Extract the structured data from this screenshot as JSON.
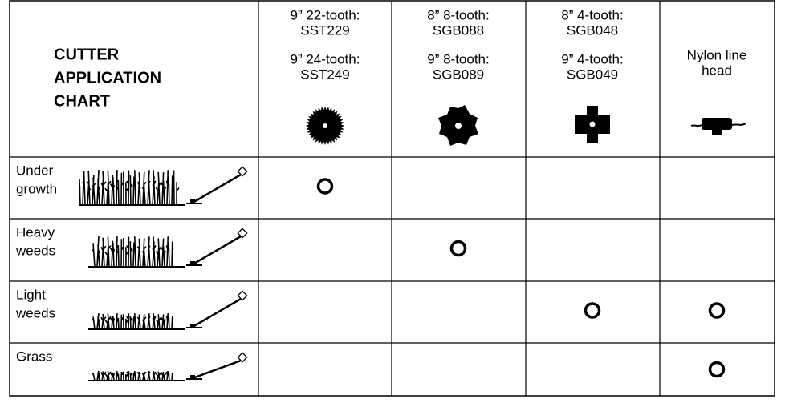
{
  "header": {
    "title": [
      "CUTTER",
      "APPLICATION",
      "CHART"
    ]
  },
  "columns": [
    {
      "groups": [
        [
          "9” 22-tooth:",
          "SST229"
        ],
        [
          "9” 24-tooth:",
          "SST249"
        ]
      ]
    },
    {
      "groups": [
        [
          "8” 8-tooth:",
          "SGB088"
        ],
        [
          "9” 8-tooth:",
          "SGB089"
        ]
      ]
    },
    {
      "groups": [
        [
          "8” 4-tooth:",
          "SGB048"
        ],
        [
          "9” 4-tooth:",
          "SGB049"
        ]
      ]
    },
    {
      "groups": [
        [
          "Nylon line",
          "head"
        ]
      ]
    }
  ],
  "rows": [
    {
      "label": [
        "Under",
        "growth"
      ],
      "marks": [
        true,
        false,
        false,
        false
      ]
    },
    {
      "label": [
        "Heavy",
        "weeds"
      ],
      "marks": [
        false,
        true,
        false,
        false
      ]
    },
    {
      "label": [
        "Light",
        "weeds"
      ],
      "marks": [
        false,
        false,
        true,
        true
      ]
    },
    {
      "label": [
        "Grass"
      ],
      "marks": [
        false,
        false,
        false,
        true
      ]
    }
  ]
}
